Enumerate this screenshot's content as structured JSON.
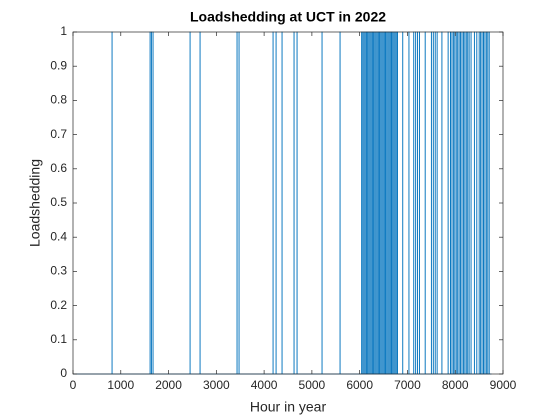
{
  "chart_data": {
    "type": "line",
    "title": "Loadshedding at UCT in 2022",
    "xlabel": "Hour in year",
    "ylabel": "Loadshedding",
    "xlim": [
      0,
      9000
    ],
    "xticks": [
      0,
      1000,
      2000,
      3000,
      4000,
      5000,
      6000,
      7000,
      8000,
      9000
    ],
    "ylim": [
      0,
      1
    ],
    "yticks": [
      0,
      0.1,
      0.2,
      0.3,
      0.4,
      0.5,
      0.6,
      0.7,
      0.8,
      0.9,
      1
    ],
    "grid": false,
    "series": [
      {
        "name": "Loadshedding",
        "color": "#0072bd",
        "x": [
          0,
          816,
          816,
          819,
          819,
          1612,
          1612,
          1615,
          1615,
          1640,
          1640,
          1643,
          1643,
          1674,
          1674,
          1677,
          1677,
          2449,
          2449,
          2452,
          2452,
          2658,
          2658,
          2661,
          2661,
          3432,
          3432,
          3435,
          3435,
          3474,
          3474,
          3477,
          3477,
          4186,
          4186,
          4189,
          4189,
          4249,
          4249,
          4252,
          4252,
          4374,
          4374,
          4377,
          4377,
          4625,
          4625,
          4628,
          4628,
          4688,
          4688,
          4691,
          4691,
          5211,
          5211,
          5214,
          5214,
          5588,
          5588,
          5591,
          5591,
          6040,
          6040,
          6043,
          6043,
          6065,
          6065,
          6068,
          6068,
          6090,
          6090,
          6093,
          6093,
          6115,
          6115,
          6118,
          6118,
          6140,
          6140,
          6143,
          6143,
          6165,
          6165,
          6168,
          6168,
          6190,
          6190,
          6193,
          6193,
          6215,
          6215,
          6218,
          6218,
          6240,
          6240,
          6243,
          6243,
          6265,
          6265,
          6268,
          6268,
          6290,
          6290,
          6293,
          6293,
          6315,
          6315,
          6318,
          6318,
          6340,
          6340,
          6343,
          6343,
          6365,
          6365,
          6368,
          6368,
          6390,
          6390,
          6393,
          6393,
          6415,
          6415,
          6418,
          6418,
          6440,
          6440,
          6443,
          6443,
          6465,
          6465,
          6468,
          6468,
          6490,
          6490,
          6493,
          6493,
          6515,
          6515,
          6518,
          6518,
          6540,
          6540,
          6543,
          6543,
          6565,
          6565,
          6568,
          6568,
          6590,
          6590,
          6593,
          6593,
          6615,
          6615,
          6618,
          6618,
          6640,
          6640,
          6643,
          6643,
          6665,
          6665,
          6668,
          6668,
          6690,
          6690,
          6693,
          6693,
          6715,
          6715,
          6718,
          6718,
          6740,
          6740,
          6743,
          6743,
          6765,
          6765,
          6768,
          6768,
          6790,
          6790,
          6793,
          6793,
          6900,
          6900,
          6903,
          6903,
          7030,
          7030,
          7033,
          7033,
          7130,
          7130,
          7133,
          7133,
          7170,
          7170,
          7173,
          7173,
          7210,
          7210,
          7213,
          7213,
          7250,
          7250,
          7253,
          7253,
          7370,
          7370,
          7373,
          7373,
          7500,
          7500,
          7503,
          7503,
          7540,
          7540,
          7543,
          7543,
          7580,
          7580,
          7583,
          7583,
          7620,
          7620,
          7623,
          7623,
          7720,
          7720,
          7723,
          7723,
          7850,
          7850,
          7853,
          7853,
          7900,
          7900,
          7903,
          7903,
          7930,
          7930,
          7933,
          7933,
          7960,
          7960,
          7963,
          7963,
          7990,
          7990,
          7993,
          7993,
          8020,
          8020,
          8023,
          8023,
          8050,
          8050,
          8053,
          8053,
          8080,
          8080,
          8083,
          8083,
          8110,
          8110,
          8113,
          8113,
          8140,
          8140,
          8143,
          8143,
          8170,
          8170,
          8173,
          8173,
          8200,
          8200,
          8203,
          8203,
          8230,
          8230,
          8233,
          8233,
          8260,
          8260,
          8263,
          8263,
          8290,
          8290,
          8293,
          8293,
          8330,
          8330,
          8333,
          8333,
          8400,
          8400,
          8403,
          8403,
          8450,
          8450,
          8453,
          8453,
          8500,
          8500,
          8503,
          8503,
          8530,
          8530,
          8533,
          8533,
          8560,
          8560,
          8563,
          8563,
          8590,
          8590,
          8593,
          8593,
          8620,
          8620,
          8623,
          8623,
          8650,
          8650,
          8653,
          8653,
          8680,
          8680,
          8683,
          8683,
          8710,
          8710,
          8713,
          8713,
          8760
        ],
        "values": [
          0,
          0,
          1,
          1,
          0,
          0,
          1,
          1,
          0,
          0,
          1,
          1,
          0,
          0,
          1,
          1,
          0,
          0,
          1,
          1,
          0,
          0,
          1,
          1,
          0,
          0,
          1,
          1,
          0,
          0,
          1,
          1,
          0,
          0,
          1,
          1,
          0,
          0,
          1,
          1,
          0,
          0,
          1,
          1,
          0,
          0,
          1,
          1,
          0,
          0,
          1,
          1,
          0,
          0,
          1,
          1,
          0,
          0,
          1,
          1,
          0,
          0,
          1,
          1,
          0,
          0,
          1,
          1,
          0,
          0,
          1,
          1,
          0,
          0,
          1,
          1,
          0,
          0,
          1,
          1,
          0,
          0,
          1,
          1,
          0,
          0,
          1,
          1,
          0,
          0,
          1,
          1,
          0,
          0,
          1,
          1,
          0,
          0,
          1,
          1,
          0,
          0,
          1,
          1,
          0,
          0,
          1,
          1,
          0,
          0,
          1,
          1,
          0,
          0,
          1,
          1,
          0,
          0,
          1,
          1,
          0,
          0,
          1,
          1,
          0,
          0,
          1,
          1,
          0,
          0,
          1,
          1,
          0,
          0,
          1,
          1,
          0,
          0,
          1,
          1,
          0,
          0,
          1,
          1,
          0,
          0,
          1,
          1,
          0,
          0,
          1,
          1,
          0,
          0,
          1,
          1,
          0,
          0,
          1,
          1,
          0,
          0,
          1,
          1,
          0,
          0,
          1,
          1,
          0,
          0,
          1,
          1,
          0,
          0,
          1,
          1,
          0,
          0,
          1,
          1,
          0,
          0,
          1,
          1,
          0,
          0,
          1,
          1,
          0,
          0,
          1,
          1,
          0,
          0,
          1,
          1,
          0,
          0,
          1,
          1,
          0,
          0,
          1,
          1,
          0,
          0,
          1,
          1,
          0,
          0,
          1,
          1,
          0,
          0,
          1,
          1,
          0,
          0,
          1,
          1,
          0,
          0,
          1,
          1,
          0,
          0,
          1,
          1,
          0,
          0,
          1,
          1,
          0,
          0,
          1,
          1,
          0,
          0,
          1,
          1,
          0,
          0,
          1,
          1,
          0,
          0,
          1,
          1,
          0,
          0,
          1,
          1,
          0,
          0,
          1,
          1,
          0,
          0,
          1,
          1,
          0,
          0,
          1,
          1,
          0,
          0,
          1,
          1,
          0,
          0,
          1,
          1,
          0,
          0,
          1,
          1,
          0,
          0,
          1,
          1,
          0,
          0,
          1,
          1,
          0,
          0,
          1,
          1,
          0,
          0,
          1,
          1,
          0,
          0,
          1,
          1,
          0,
          0,
          1,
          1,
          0,
          0,
          1,
          1,
          0,
          0,
          1,
          1,
          0,
          0,
          1,
          1,
          0,
          0,
          1,
          1,
          0,
          0,
          1,
          1,
          0,
          0,
          1,
          1,
          0,
          0,
          1,
          1,
          0,
          0,
          1,
          1,
          0,
          0,
          1,
          1,
          0,
          0
        ]
      }
    ]
  }
}
